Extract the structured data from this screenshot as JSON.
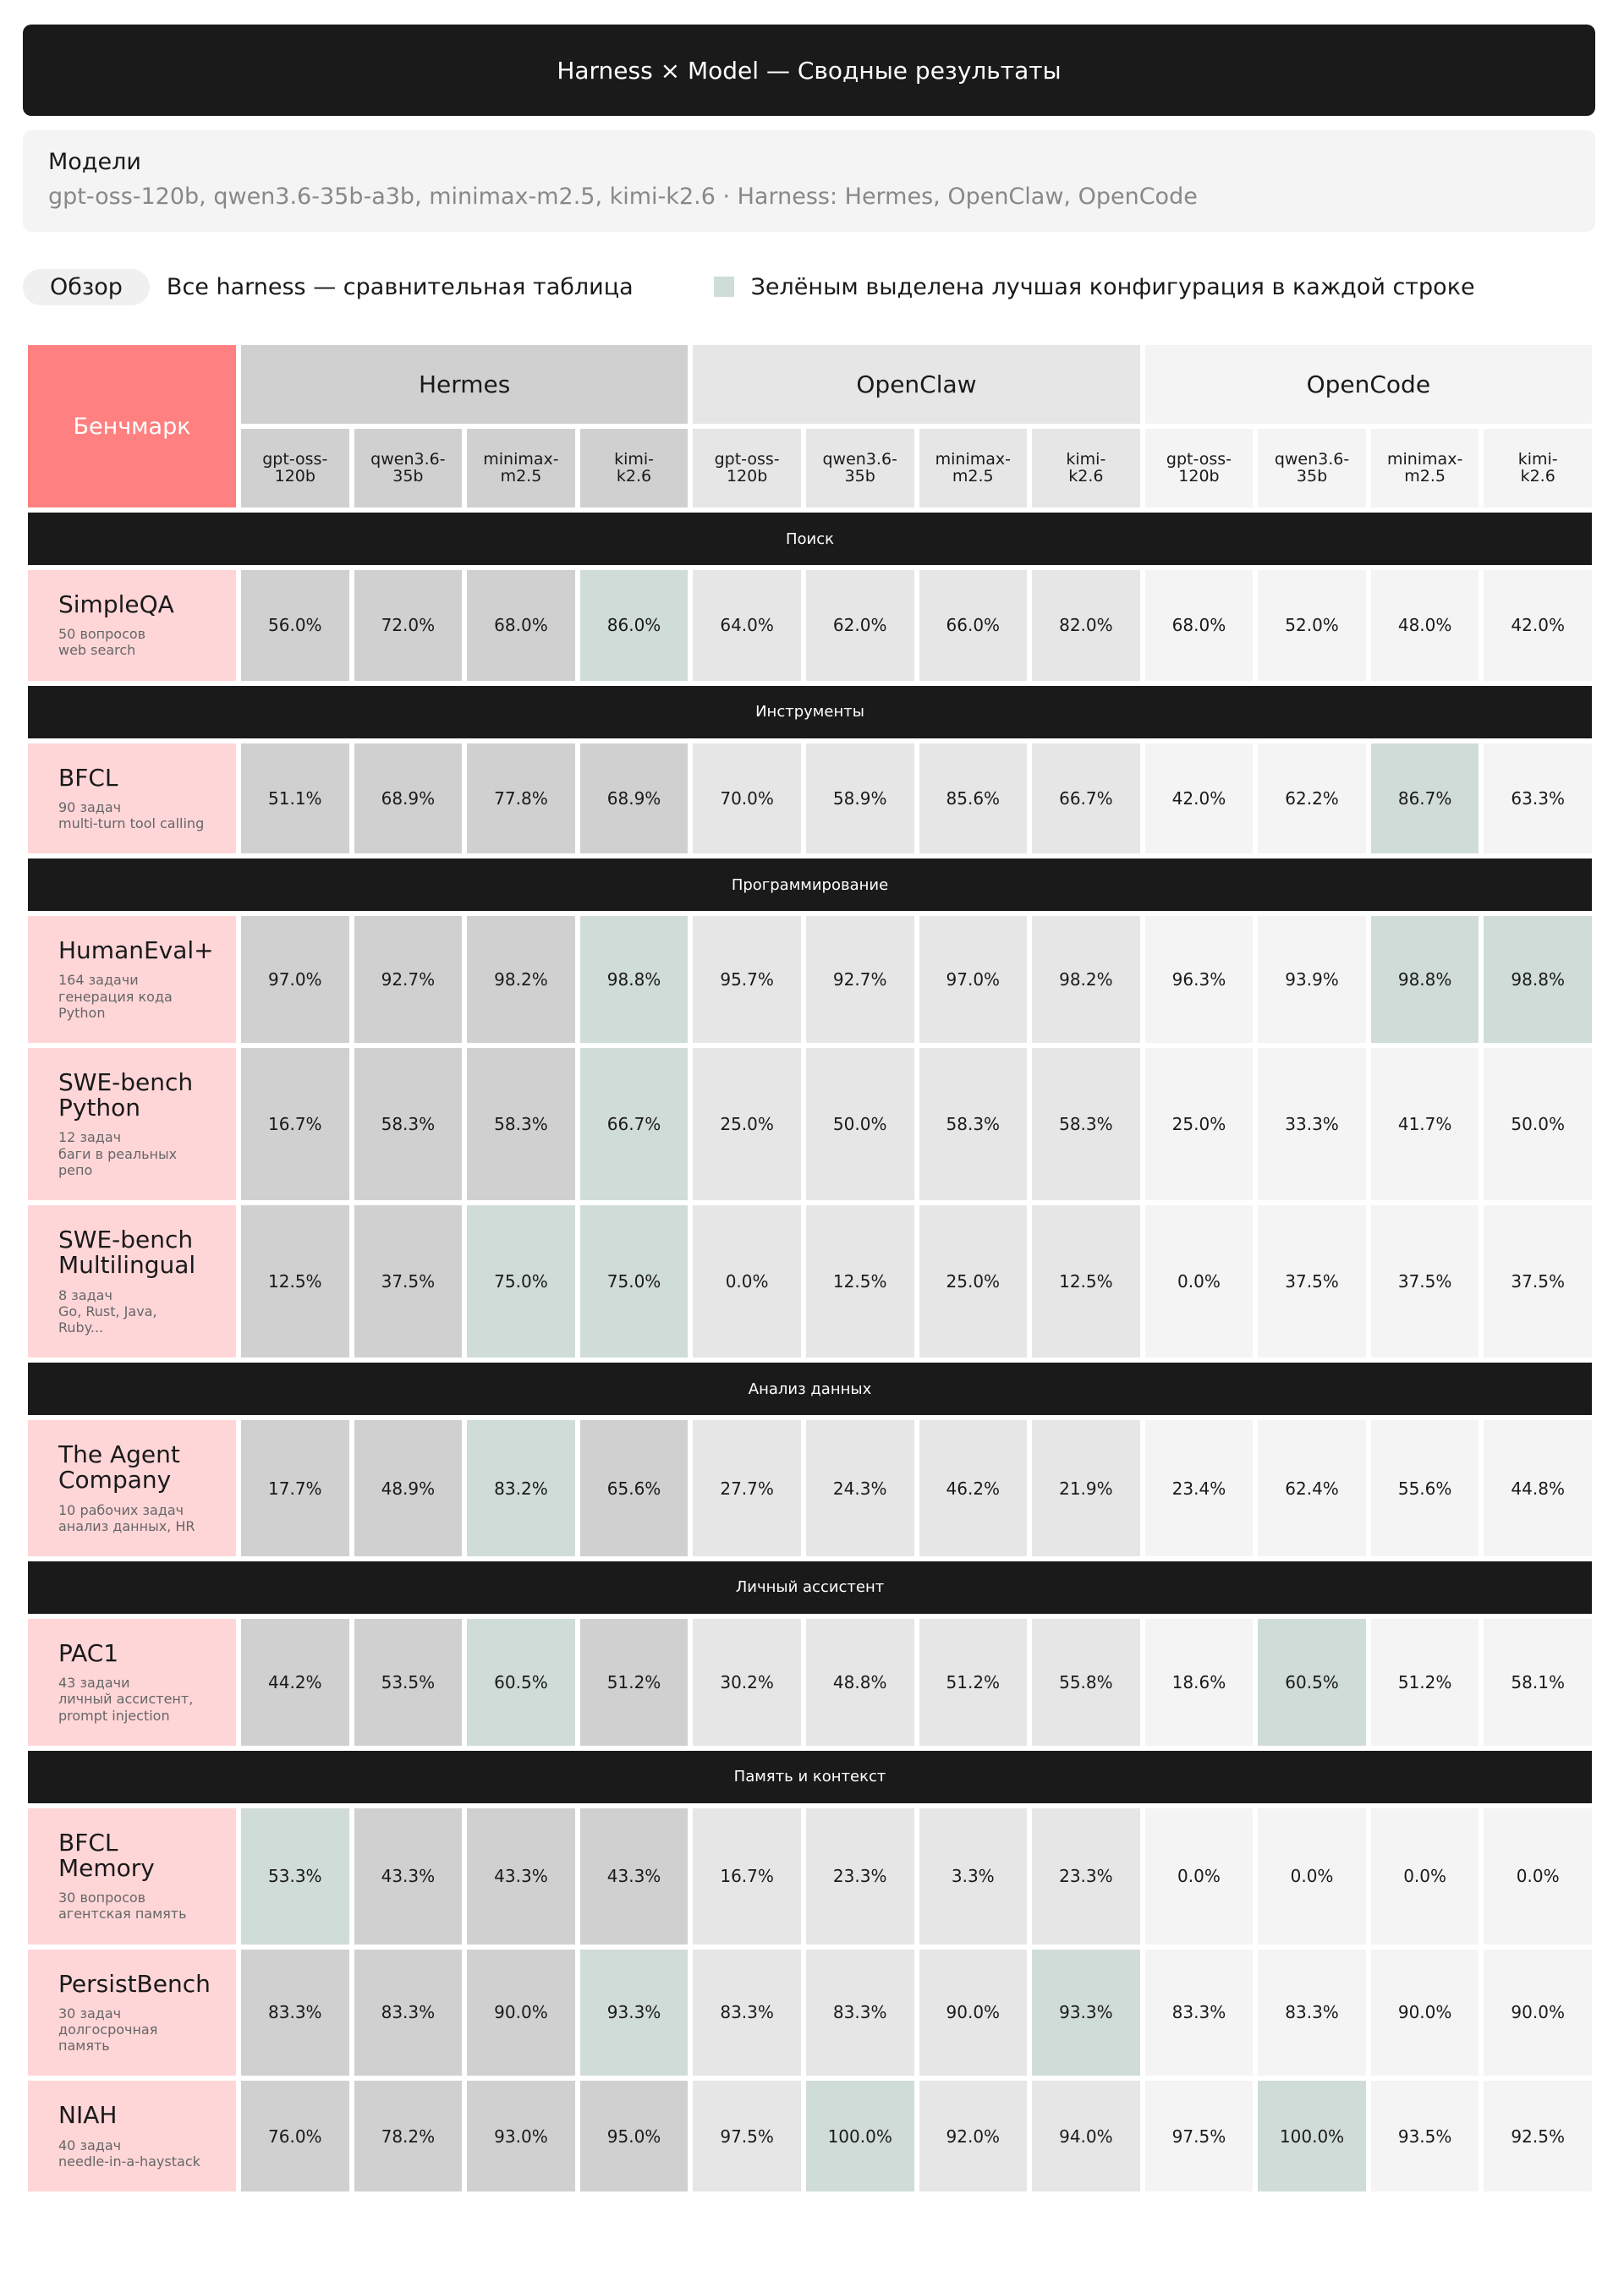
{
  "header": {
    "title": "Harness × Model — Сводные результаты"
  },
  "models": {
    "label": "Модели",
    "text": "gpt-oss-120b, qwen3.6-35b-a3b, minimax-m2.5, kimi-k2.6 · Harness: Hermes, OpenClaw, OpenCode"
  },
  "tabs": {
    "active": "Обзор",
    "description": "Все harness — сравнительная таблица"
  },
  "legend": {
    "color": "#d0dcd8",
    "text": "Зелёным выделена лучшая конфигурация в каждой строке"
  },
  "table": {
    "corner": "Бенчмарк",
    "groups": [
      {
        "name": "Hermes",
        "color": "#d0d0d0",
        "models": [
          "gpt-oss-\n120b",
          "qwen3.6-\n35b",
          "minimax-\nm2.5",
          "kimi-\nk2.6"
        ]
      },
      {
        "name": "OpenClaw",
        "color": "#e6e6e6",
        "models": [
          "gpt-oss-\n120b",
          "qwen3.6-\n35b",
          "minimax-\nm2.5",
          "kimi-\nk2.6"
        ]
      },
      {
        "name": "OpenCode",
        "color": "#f4f4f4",
        "models": [
          "gpt-oss-\n120b",
          "qwen3.6-\n35b",
          "minimax-\nm2.5",
          "kimi-\nk2.6"
        ]
      }
    ],
    "sections": [
      {
        "title": "Поиск",
        "rows": [
          {
            "name": "SimpleQA",
            "desc": [
              "50 вопросов",
              "web search"
            ],
            "values": [
              "56.0%",
              "72.0%",
              "68.0%",
              "86.0%",
              "64.0%",
              "62.0%",
              "66.0%",
              "82.0%",
              "68.0%",
              "52.0%",
              "48.0%",
              "42.0%"
            ]
          }
        ]
      },
      {
        "title": "Инструменты",
        "rows": [
          {
            "name": "BFCL",
            "desc": [
              "90 задач",
              "multi-turn tool calling"
            ],
            "values": [
              "51.1%",
              "68.9%",
              "77.8%",
              "68.9%",
              "70.0%",
              "58.9%",
              "85.6%",
              "66.7%",
              "42.0%",
              "62.2%",
              "86.7%",
              "63.3%"
            ]
          }
        ]
      },
      {
        "title": "Программирование",
        "rows": [
          {
            "name": "HumanEval+",
            "desc": [
              "164 задачи",
              "генерация кода Python"
            ],
            "values": [
              "97.0%",
              "92.7%",
              "98.2%",
              "98.8%",
              "95.7%",
              "92.7%",
              "97.0%",
              "98.2%",
              "96.3%",
              "93.9%",
              "98.8%",
              "98.8%"
            ]
          },
          {
            "name": "SWE-bench\nPython",
            "desc": [
              "12 задач",
              "баги в реальных репо"
            ],
            "values": [
              "16.7%",
              "58.3%",
              "58.3%",
              "66.7%",
              "25.0%",
              "50.0%",
              "58.3%",
              "58.3%",
              "25.0%",
              "33.3%",
              "41.7%",
              "50.0%"
            ]
          },
          {
            "name": "SWE-bench\nMultilingual",
            "desc": [
              "8 задач",
              "Go, Rust, Java, Ruby..."
            ],
            "values": [
              "12.5%",
              "37.5%",
              "75.0%",
              "75.0%",
              "0.0%",
              "12.5%",
              "25.0%",
              "12.5%",
              "0.0%",
              "37.5%",
              "37.5%",
              "37.5%"
            ]
          }
        ]
      },
      {
        "title": "Анализ данных",
        "rows": [
          {
            "name": "The Agent\nCompany",
            "desc": [
              "10 рабочих задач",
              "анализ данных, HR"
            ],
            "values": [
              "17.7%",
              "48.9%",
              "83.2%",
              "65.6%",
              "27.7%",
              "24.3%",
              "46.2%",
              "21.9%",
              "23.4%",
              "62.4%",
              "55.6%",
              "44.8%"
            ]
          }
        ]
      },
      {
        "title": "Личный ассистент",
        "rows": [
          {
            "name": "PAC1",
            "desc": [
              "43 задачи",
              "личный ассистент,",
              "prompt injection"
            ],
            "values": [
              "44.2%",
              "53.5%",
              "60.5%",
              "51.2%",
              "30.2%",
              "48.8%",
              "51.2%",
              "55.8%",
              "18.6%",
              "60.5%",
              "51.2%",
              "58.1%"
            ]
          }
        ]
      },
      {
        "title": "Память и контекст",
        "rows": [
          {
            "name": "BFCL\nMemory",
            "desc": [
              "30 вопросов",
              "агентская память"
            ],
            "values": [
              "53.3%",
              "43.3%",
              "43.3%",
              "43.3%",
              "16.7%",
              "23.3%",
              "3.3%",
              "23.3%",
              "0.0%",
              "0.0%",
              "0.0%",
              "0.0%"
            ]
          },
          {
            "name": "PersistBench",
            "desc": [
              "30 задач",
              "долгосрочная память"
            ],
            "values": [
              "83.3%",
              "83.3%",
              "90.0%",
              "93.3%",
              "83.3%",
              "83.3%",
              "90.0%",
              "93.3%",
              "83.3%",
              "83.3%",
              "90.0%",
              "90.0%"
            ]
          },
          {
            "name": "NIAH",
            "desc": [
              "40 задач",
              "needle-in-a-haystack"
            ],
            "values": [
              "76.0%",
              "78.2%",
              "93.0%",
              "95.0%",
              "97.5%",
              "100.0%",
              "92.0%",
              "94.0%",
              "97.5%",
              "100.0%",
              "93.5%",
              "92.5%"
            ]
          }
        ]
      }
    ]
  }
}
